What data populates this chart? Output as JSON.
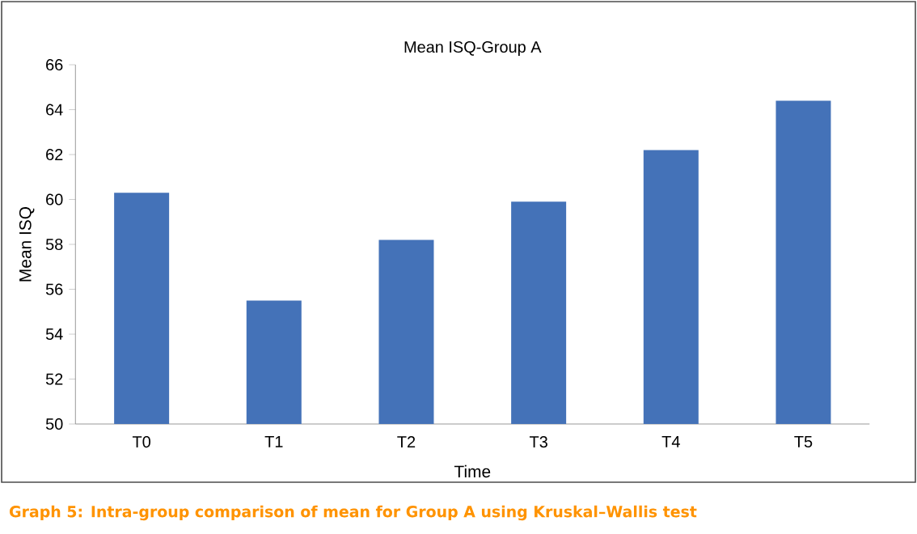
{
  "chart_data": {
    "type": "bar",
    "title": "Mean ISQ-Group A",
    "xlabel": "Time",
    "ylabel": "Mean ISQ",
    "categories": [
      "T0",
      "T1",
      "T2",
      "T3",
      "T4",
      "T5"
    ],
    "values": [
      60.3,
      55.5,
      58.2,
      59.9,
      62.2,
      64.4
    ],
    "color": "#4472b8",
    "ylim": [
      50,
      66
    ],
    "yticks": [
      50,
      52,
      54,
      56,
      58,
      60,
      62,
      64,
      66
    ],
    "grid": false,
    "annotations": [
      "Graph 5: Intra-group comparison of mean for Group A using Kruskal–Wallis test"
    ]
  }
}
